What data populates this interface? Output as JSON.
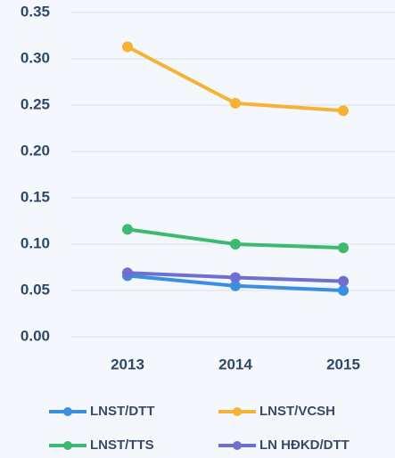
{
  "chart_data": {
    "type": "line",
    "categories": [
      "2013",
      "2014",
      "2015"
    ],
    "series": [
      {
        "name": "LNST/DTT",
        "color": "#3b8fe0",
        "values": [
          0.066,
          0.055,
          0.05
        ]
      },
      {
        "name": "LNST/VCSH",
        "color": "#f5b335",
        "values": [
          0.313,
          0.252,
          0.244
        ]
      },
      {
        "name": "LNST/TTS",
        "color": "#3dba72",
        "values": [
          0.116,
          0.1,
          0.096
        ]
      },
      {
        "name": "LN HĐKD/DTT",
        "color": "#6e6fd0",
        "values": [
          0.069,
          0.064,
          0.06
        ]
      }
    ],
    "ylim": [
      0,
      0.35
    ],
    "yticks": [
      {
        "value": 0,
        "label": "0.00"
      },
      0.05,
      {
        "value": 0.1,
        "label": "0.10"
      },
      0.15,
      {
        "value": 0.2,
        "label": "0.20"
      },
      0.25,
      {
        "value": 0.3,
        "label": "0.30"
      },
      0.35
    ],
    "grid": true
  }
}
